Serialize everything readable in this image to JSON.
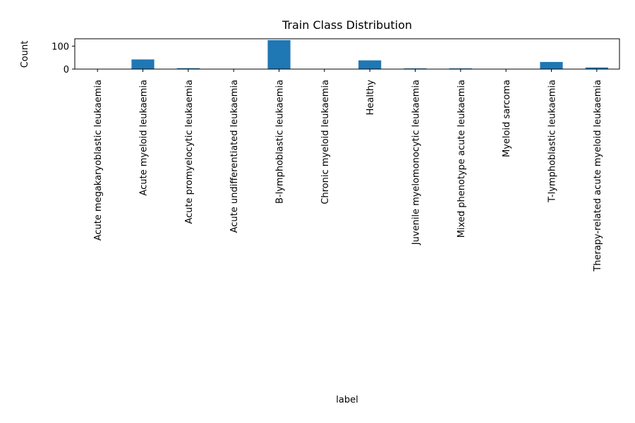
{
  "chart_data": {
    "type": "bar",
    "title": "Train Class Distribution",
    "xlabel": "label",
    "ylabel": "Count",
    "categories": [
      "Acute megakaryoblastic leukaemia",
      "Acute myeloid leukaemia",
      "Acute promyelocytic leukaemia",
      "Acute undifferentiated leukaemia",
      "B-lymphoblastic leukaemia",
      "Chronic myeloid leukaemia",
      "Healthy",
      "Juvenile myelomonocytic leukaemia",
      "Mixed phenotype acute leukaemia",
      "Myeloid sarcoma",
      "T-lymphoblastic leukaemia",
      "Therapy-related acute myeloid leukaemia"
    ],
    "values": [
      1,
      42,
      4,
      1,
      126,
      1,
      38,
      3,
      3,
      1,
      31,
      7
    ],
    "ylim": [
      0,
      132
    ],
    "yticks": [
      "0",
      "100"
    ],
    "ytick_values": [
      0,
      100
    ],
    "grid": false,
    "bar_color": "#1f77b4"
  }
}
